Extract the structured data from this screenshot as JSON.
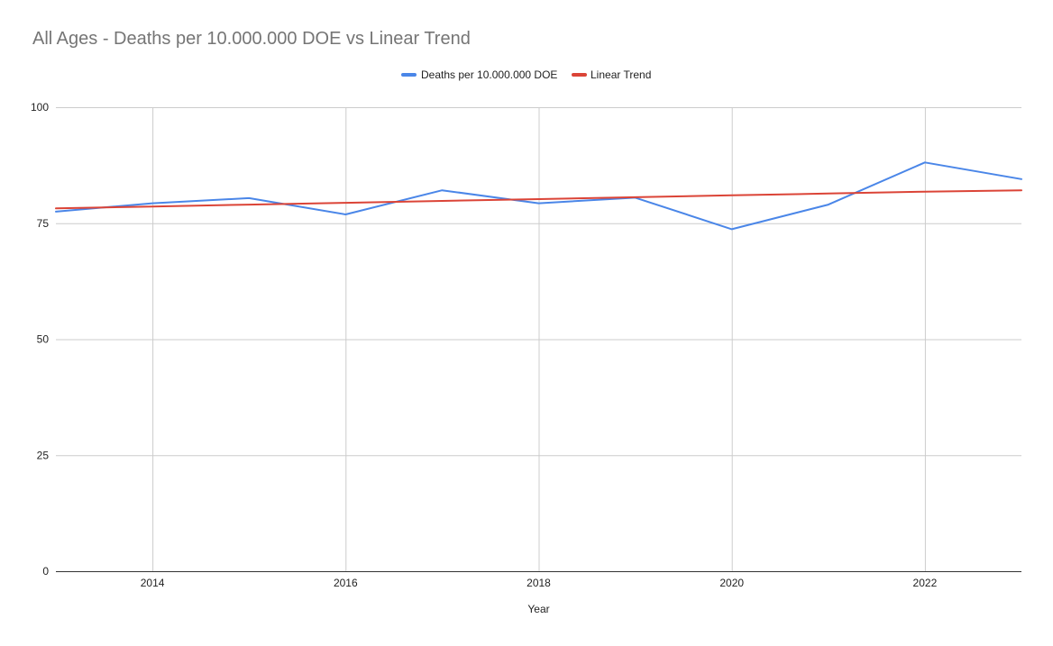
{
  "chart_data": {
    "type": "line",
    "title": "All Ages - Deaths per 10.000.000 DOE vs Linear Trend",
    "xlabel": "Year",
    "ylabel": "",
    "xlim": [
      2013,
      2023
    ],
    "ylim": [
      0,
      100
    ],
    "x_ticks": [
      2014,
      2016,
      2018,
      2020,
      2022
    ],
    "y_ticks": [
      0,
      25,
      50,
      75,
      100
    ],
    "grid": true,
    "legend_position": "top",
    "x": [
      2013,
      2014,
      2015,
      2016,
      2017,
      2018,
      2019,
      2020,
      2021,
      2022,
      2023
    ],
    "series": [
      {
        "name": "Deaths per 10.000.000 DOE",
        "color": "#4a86e8",
        "values": [
          77.5,
          79.3,
          80.4,
          76.9,
          82.1,
          79.3,
          80.5,
          73.7,
          79.0,
          88.1,
          84.5
        ]
      },
      {
        "name": "Linear Trend",
        "color": "#db4437",
        "values": [
          78.2,
          78.6,
          79.0,
          79.4,
          79.8,
          80.2,
          80.6,
          81.0,
          81.4,
          81.8,
          82.1
        ]
      }
    ]
  }
}
